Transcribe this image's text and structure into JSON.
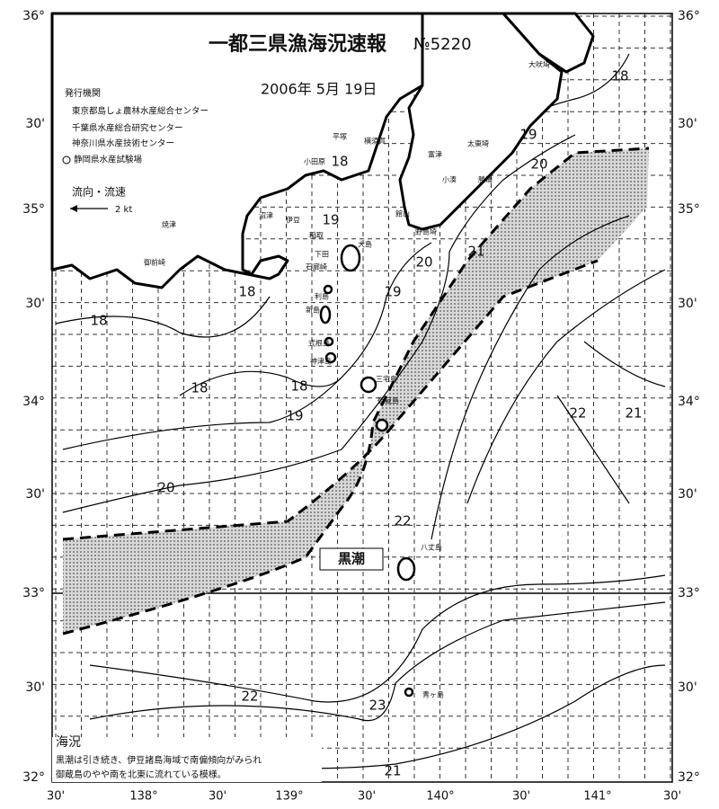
{
  "header": {
    "title": "一都三県漁海況速報",
    "number": "№5220",
    "date": "2006年 5月 19日"
  },
  "issuers": {
    "heading": "発行機関",
    "items": [
      "東京都島しょ農林水産総合センター",
      "千葉県水産総合研究センター",
      "神奈川県水産技術センター",
      "静岡県水産試験場"
    ]
  },
  "legend": {
    "label": "流向・流速",
    "scale": "2 kt"
  },
  "lat_labels": [
    "36°",
    "30'",
    "35°",
    "30'",
    "34°",
    "30'",
    "33°",
    "30'",
    "32°"
  ],
  "lon_labels": [
    "30'",
    "138°",
    "30'",
    "139°",
    "30'",
    "140°",
    "30'",
    "141°",
    "30'"
  ],
  "isotherms": [
    "18",
    "19",
    "20",
    "18",
    "19",
    "21",
    "20",
    "19",
    "18",
    "18",
    "18",
    "18",
    "19",
    "22",
    "21",
    "20",
    "22",
    "22",
    "23",
    "21"
  ],
  "places": [
    "大吠埼",
    "太東埼",
    "勝浦",
    "小湊",
    "平塚",
    "横須賀",
    "富津",
    "小田原",
    "館山",
    "野島埼",
    "沼津",
    "伊豆",
    "稲取",
    "下田",
    "石廊崎",
    "焼津",
    "御前崎",
    "大島",
    "利島",
    "新島",
    "式根島",
    "神津島",
    "三宅島",
    "御蔵島",
    "八丈島",
    "青ヶ島"
  ],
  "current_label": "黒潮",
  "notes": {
    "heading": "海況",
    "lines": [
      "黒潮は引き続き、伊豆諸島海域で南偏傾向がみられ",
      "御蔵島のやや南を北東に流れている模様。"
    ]
  }
}
